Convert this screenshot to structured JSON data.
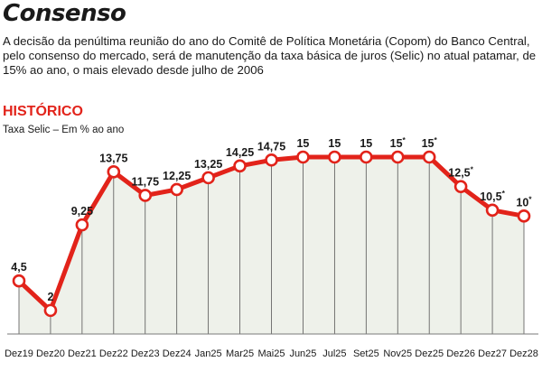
{
  "header": {
    "title": "Consenso",
    "description": "A decisão da penúltima reunião do ano do Comitê de Política Monetária (Copom) do Banco Central, pelo consenso do mercado, será de manutenção da taxa básica de juros (Selic) no atual patamar, de 15% ao ano, o mais elevado desde julho de 2006"
  },
  "chart_data": {
    "type": "line",
    "title": "HISTÓRICO",
    "subtitle": "Taxa Selic – Em % ao ano",
    "categories": [
      "Dez19",
      "Dez20",
      "Dez21",
      "Dez22",
      "Dez23",
      "Dez24",
      "Jan25",
      "Mar25",
      "Mai25",
      "Jun25",
      "Jul25",
      "Set25",
      "Nov25",
      "Dez25",
      "Dez26",
      "Dez27",
      "Dez28"
    ],
    "values": [
      4.5,
      2,
      9.25,
      13.75,
      11.75,
      12.25,
      13.25,
      14.25,
      14.75,
      15,
      15,
      15,
      15,
      15,
      12.5,
      10.5,
      10
    ],
    "labels": [
      "4,5",
      "2",
      "9,25",
      "13,75",
      "11,75",
      "12,25",
      "13,25",
      "14,25",
      "14,75",
      "15",
      "15",
      "15",
      "15",
      "15",
      "12,5",
      "10,5",
      "10"
    ],
    "projected": [
      false,
      false,
      false,
      false,
      false,
      false,
      false,
      false,
      false,
      false,
      false,
      false,
      true,
      true,
      true,
      true,
      true
    ],
    "projection_marker": "*",
    "ylim": [
      0,
      16
    ],
    "xlabel": "",
    "ylabel": "",
    "grid": false,
    "colors": {
      "line": "#e2231a",
      "area": "#eef1ea",
      "guide": "#555555",
      "title": "#e2231a"
    }
  }
}
